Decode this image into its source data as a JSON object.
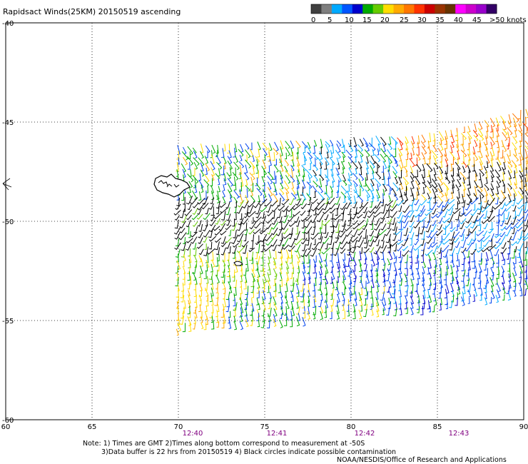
{
  "title": "Rapidsact Winds(25KM) 20150519 ascending",
  "legend": {
    "labels": [
      "0",
      "5",
      "10",
      "15",
      "20",
      "25",
      "30",
      "35",
      "40",
      "45",
      ">50 knots"
    ],
    "colors": [
      "#404040",
      "#7f7f7f",
      "#00aaff",
      "#0055ff",
      "#0000cc",
      "#00aa00",
      "#66cc00",
      "#ffdd00",
      "#ffaa00",
      "#ff7700",
      "#ff3300",
      "#cc0000",
      "#993300",
      "#663300",
      "#ff00ff",
      "#cc00cc",
      "#9900cc",
      "#330066"
    ]
  },
  "map": {
    "lon_range": [
      60,
      90
    ],
    "lat_range": [
      -60,
      -40
    ],
    "lon_ticks": [
      "60",
      "65",
      "70",
      "75",
      "80",
      "85",
      "90"
    ],
    "lat_ticks": [
      "-40",
      "-45",
      "-50",
      "-55",
      "-60"
    ],
    "grid": true
  },
  "times": [
    "12:40",
    "12:41",
    "12:42",
    "12:43"
  ],
  "notes": {
    "line1": "Note: 1) Times are GMT 2)Times along bottom correspond to measurement at -50S",
    "line2": "3)Data buffer is 22 hrs from 20150519 4) Black circles indicate possible contamination",
    "credit": "NOAA/NESDIS/Office of Research and Applications"
  }
}
